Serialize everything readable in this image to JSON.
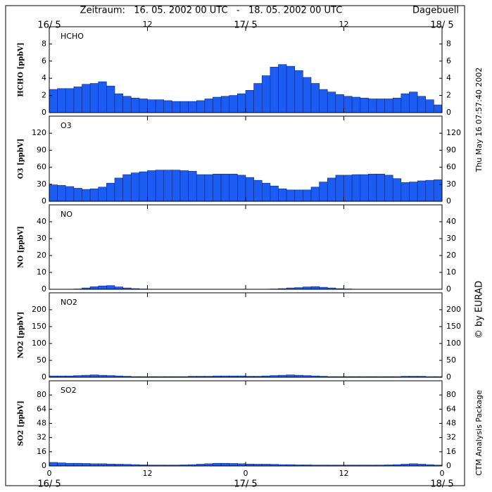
{
  "header": {
    "period": "Zeitraum:   16. 05. 2002 00 UTC   -   18. 05. 2002 00 UTC",
    "station": "Dagebuell"
  },
  "side": {
    "timestamp": "Thu May 16 07:57:40 2002",
    "credit": "© by EURAD",
    "package": "CTM Analysis Package"
  },
  "time_axis": {
    "xlim": [
      0,
      48
    ],
    "xticks": [
      {
        "value": 0,
        "label": "0"
      },
      12,
      {
        "value": 24,
        "label": "0"
      },
      {
        "value": 36,
        "label": "12"
      },
      {
        "value": 48,
        "label": "0"
      }
    ],
    "date_labels": [
      {
        "value": 0,
        "label": "16/ 5"
      },
      {
        "value": 24,
        "label": "17/ 5"
      },
      {
        "value": 48,
        "label": "18/ 5"
      }
    ],
    "bins": [
      0,
      1,
      2,
      3,
      4,
      5,
      6,
      7,
      8,
      9,
      10,
      11,
      12,
      13,
      14,
      15,
      16,
      17,
      18,
      19,
      20,
      21,
      22,
      23,
      24,
      25,
      26,
      27,
      28,
      29,
      30,
      31,
      32,
      33,
      34,
      35,
      36,
      37,
      38,
      39,
      40,
      41,
      42,
      43,
      44,
      45,
      46,
      47,
      48
    ]
  },
  "chart_data": [
    {
      "type": "bar",
      "title": "HCHO",
      "ylabel": "HCHO [ppbV]",
      "color": "#1c5cf2",
      "ylim": [
        0,
        10
      ],
      "yticks": [
        0,
        2,
        4,
        6,
        8
      ],
      "values": [
        2.7,
        2.8,
        2.8,
        3.0,
        3.3,
        3.4,
        3.6,
        3.1,
        2.2,
        1.9,
        1.7,
        1.6,
        1.5,
        1.5,
        1.4,
        1.3,
        1.3,
        1.3,
        1.4,
        1.6,
        1.8,
        1.9,
        2.0,
        2.2,
        2.6,
        3.4,
        4.3,
        5.3,
        5.6,
        5.4,
        4.9,
        4.1,
        3.4,
        2.7,
        2.4,
        2.1,
        1.9,
        1.8,
        1.7,
        1.6,
        1.6,
        1.6,
        1.7,
        2.2,
        2.4,
        1.9,
        1.5,
        0.9
      ]
    },
    {
      "type": "bar",
      "title": "O3",
      "ylabel": "O3 [ppbV]",
      "color": "#1c5cf2",
      "ylim": [
        0,
        150
      ],
      "yticks": [
        0,
        30,
        60,
        90,
        120
      ],
      "values": [
        29,
        28,
        26,
        23,
        21,
        22,
        25,
        32,
        41,
        47,
        50,
        52,
        54,
        55,
        55,
        55,
        54,
        53,
        47,
        47,
        48,
        48,
        48,
        46,
        42,
        37,
        32,
        27,
        22,
        20,
        20,
        20,
        25,
        34,
        41,
        46,
        46,
        47,
        47,
        48,
        48,
        46,
        40,
        33,
        34,
        36,
        37,
        38
      ]
    },
    {
      "type": "bar",
      "title": "NO",
      "ylabel": "NO [ppbV]",
      "color": "#1c5cf2",
      "ylim": [
        0,
        50
      ],
      "yticks": [
        0,
        10,
        20,
        30,
        40
      ],
      "values": [
        0.1,
        0.1,
        0.1,
        0.2,
        0.8,
        1.5,
        2.0,
        2.2,
        1.4,
        0.8,
        0.4,
        0.2,
        0.1,
        0.1,
        0.1,
        0.1,
        0.1,
        0.1,
        0.1,
        0.1,
        0.1,
        0.1,
        0.1,
        0.1,
        0.1,
        0.1,
        0.1,
        0.2,
        0.4,
        0.8,
        1.0,
        1.4,
        1.6,
        1.2,
        0.8,
        0.4,
        0.2,
        0.1,
        0.1,
        0.1,
        0.1,
        0.1,
        0.1,
        0.1,
        0.1,
        0.1,
        0.1,
        0.1
      ]
    },
    {
      "type": "bar",
      "title": "NO2",
      "ylabel": "NO2 [ppbV]",
      "color": "#1c5cf2",
      "ylim": [
        0,
        250
      ],
      "yticks": [
        0,
        50,
        100,
        150,
        200
      ],
      "values": [
        4,
        4,
        4,
        5,
        6,
        7,
        6,
        5,
        4,
        3,
        2,
        2,
        2,
        2,
        2,
        2,
        2,
        3,
        3,
        3,
        4,
        4,
        4,
        4,
        3,
        3,
        4,
        5,
        6,
        7,
        6,
        5,
        4,
        3,
        2,
        2,
        2,
        2,
        2,
        2,
        2,
        2,
        2,
        3,
        3,
        3,
        2,
        2
      ]
    },
    {
      "type": "bar",
      "title": "SO2",
      "ylabel": "SO2 [ppbV]",
      "color": "#1c5cf2",
      "ylim": [
        0,
        96
      ],
      "yticks": [
        0,
        16,
        32,
        48,
        64,
        80
      ],
      "values": [
        4,
        3.5,
        3,
        3,
        2.8,
        2.5,
        2.5,
        2.2,
        2,
        1.8,
        1.5,
        1.2,
        1.0,
        1.0,
        1.0,
        1.0,
        1.2,
        1.5,
        2,
        2.5,
        3,
        3,
        2.8,
        2.5,
        2.2,
        2,
        2,
        1.8,
        1.5,
        1.5,
        1.2,
        1.2,
        1,
        1,
        1,
        1,
        1,
        1,
        1,
        1,
        1,
        1.2,
        1.5,
        2,
        2.5,
        2,
        1.5,
        1
      ]
    }
  ]
}
